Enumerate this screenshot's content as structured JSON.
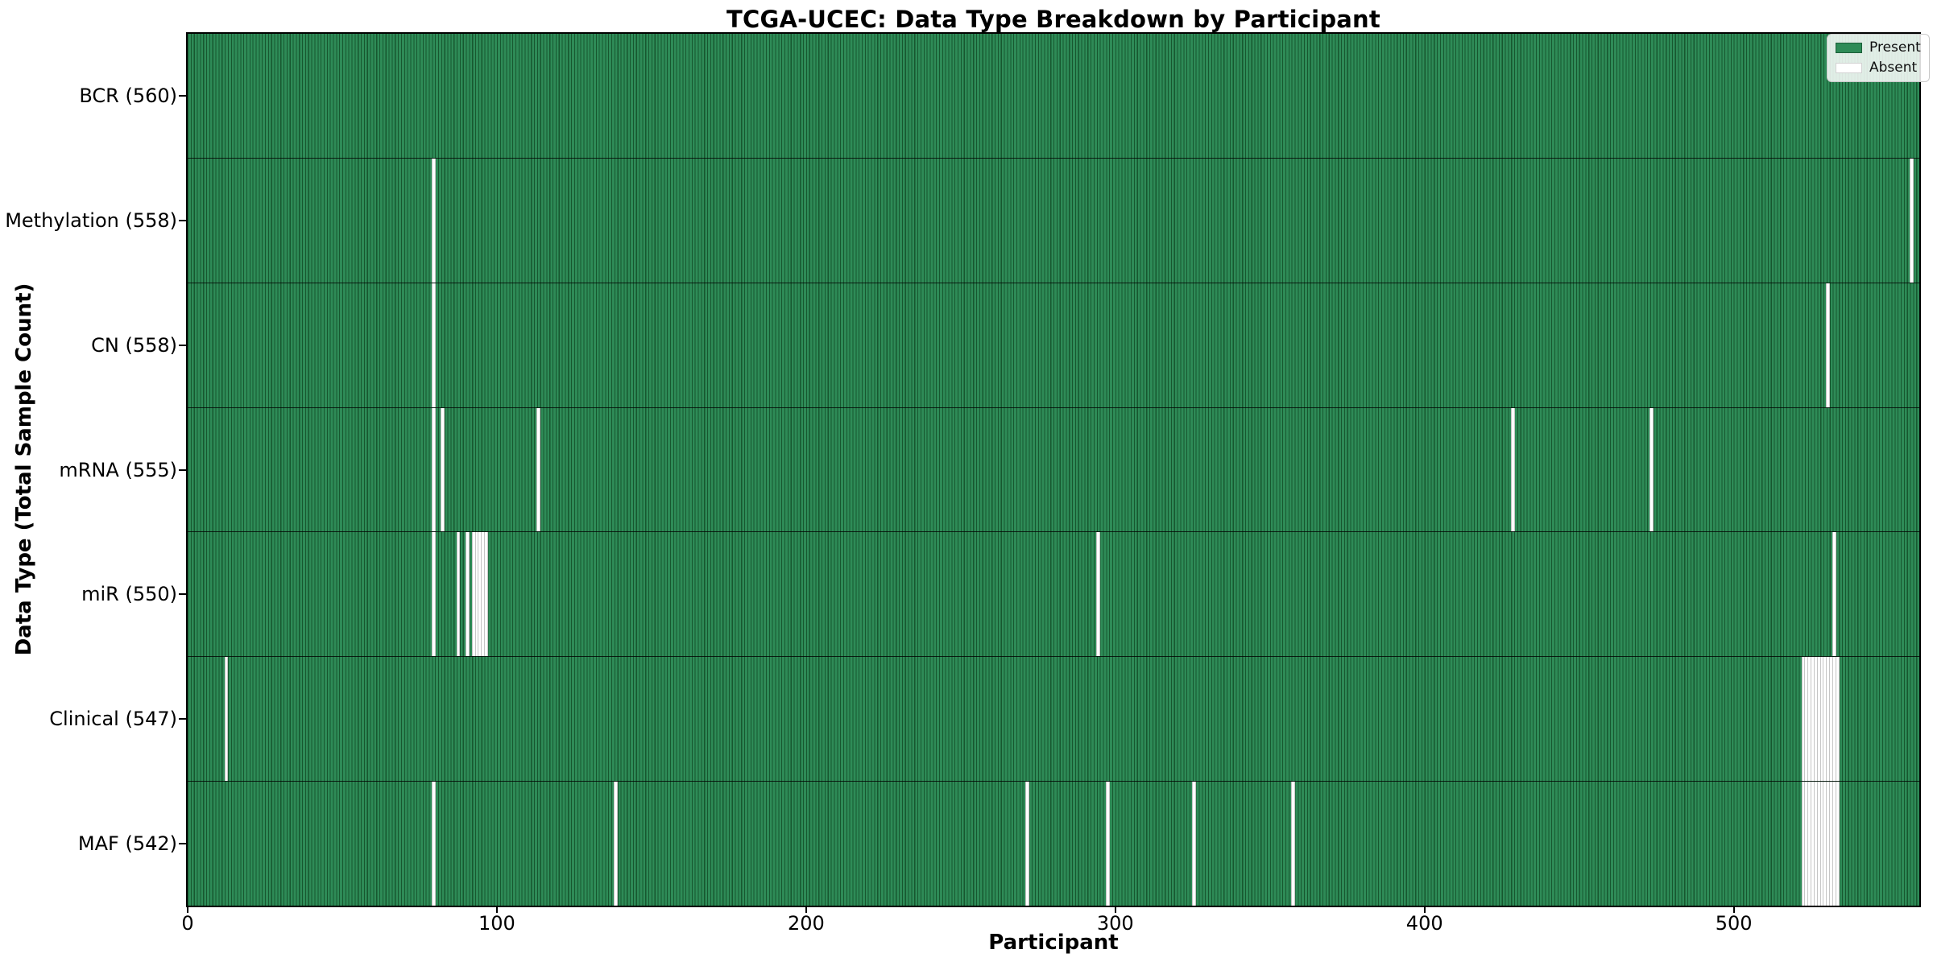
{
  "figure": {
    "title": "TCGA-UCEC: Data Type Breakdown by Participant",
    "xlabel": "Participant",
    "ylabel": "Data Type (Total Sample Count)"
  },
  "legend": {
    "position": "upper right",
    "items": [
      {
        "label": "Present",
        "color": "#2e8b57",
        "edge": "#1b5e38"
      },
      {
        "label": "Absent",
        "color": "#ffffff",
        "edge": "#d2d2d2"
      }
    ]
  },
  "chart_data": {
    "type": "heatmap",
    "title": "TCGA-UCEC: Data Type Breakdown by Participant",
    "xlabel": "Participant",
    "ylabel": "Data Type (Total Sample Count)",
    "x_ticks": [
      0,
      100,
      200,
      300,
      400,
      500
    ],
    "x_range": [
      0,
      560
    ],
    "n_participants": 560,
    "grid": false,
    "legend_entries": [
      "Present",
      "Absent"
    ],
    "colors": {
      "present": "#2e8b57",
      "absent": "#ffffff",
      "bar_edge": "#17572f",
      "absent_edge": "#c6c6c6",
      "frame": "#000000"
    },
    "rows": [
      {
        "name": "BCR",
        "label": "BCR (560)",
        "total_present": 560,
        "absent_participants": []
      },
      {
        "name": "Methylation",
        "label": "Methylation (558)",
        "total_present": 558,
        "absent_participants": [
          79,
          557
        ]
      },
      {
        "name": "CN",
        "label": "CN (558)",
        "total_present": 558,
        "absent_participants": [
          79,
          530
        ]
      },
      {
        "name": "mRNA",
        "label": "mRNA (555)",
        "total_present": 555,
        "absent_participants": [
          79,
          82,
          113,
          428,
          473
        ]
      },
      {
        "name": "miR",
        "label": "miR (550)",
        "total_present": 550,
        "absent_participants": [
          79,
          87,
          90,
          92,
          93,
          94,
          95,
          96,
          294,
          532
        ]
      },
      {
        "name": "Clinical",
        "label": "Clinical (547)",
        "total_present": 547,
        "absent_participants": [
          12,
          522,
          523,
          524,
          525,
          526,
          527,
          528,
          529,
          530,
          531,
          532,
          533
        ]
      },
      {
        "name": "MAF",
        "label": "MAF (542)",
        "total_present": 542,
        "absent_participants": [
          79,
          138,
          271,
          297,
          325,
          357,
          522,
          523,
          524,
          525,
          526,
          527,
          528,
          529,
          530,
          531,
          532,
          533
        ]
      }
    ]
  }
}
